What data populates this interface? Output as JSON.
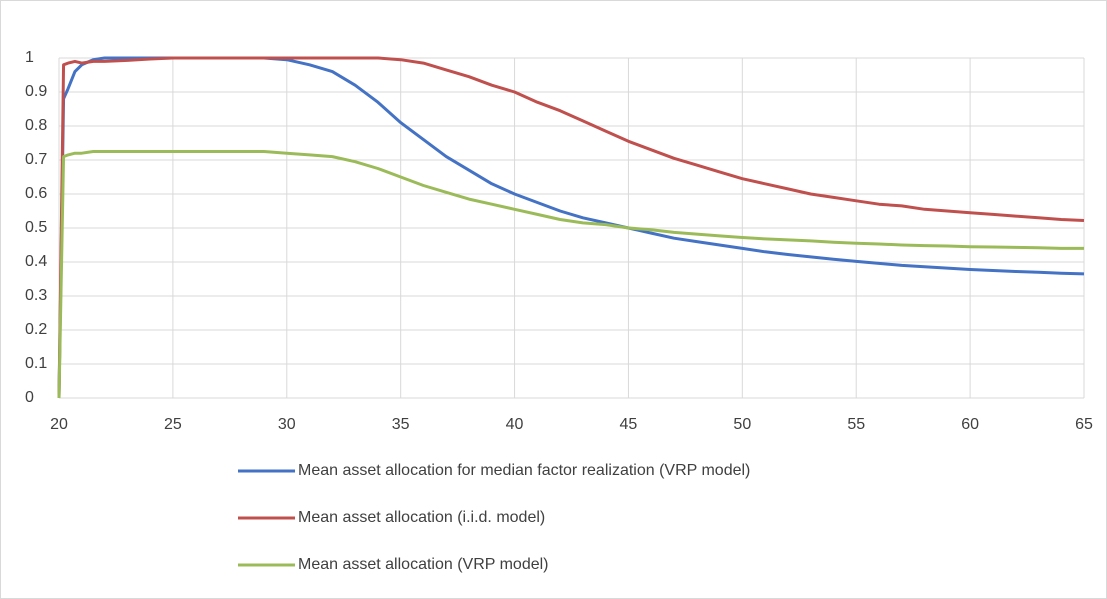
{
  "chart_data": {
    "type": "line",
    "x": [
      20,
      20.2,
      20.4,
      20.7,
      21,
      21.5,
      22,
      23,
      24,
      25,
      26,
      27,
      28,
      29,
      30,
      31,
      32,
      33,
      34,
      35,
      36,
      37,
      38,
      39,
      40,
      41,
      42,
      43,
      44,
      45,
      46,
      47,
      48,
      49,
      50,
      51,
      52,
      53,
      54,
      55,
      56,
      57,
      58,
      59,
      60,
      61,
      62,
      63,
      64,
      65
    ],
    "series": [
      {
        "name": "Mean asset allocation for median factor realization (VRP model)",
        "color": "#4472c4",
        "values": [
          0,
          0.88,
          0.91,
          0.96,
          0.98,
          0.995,
          1,
          1,
          1,
          1,
          1,
          1,
          1,
          1,
          0.995,
          0.98,
          0.96,
          0.92,
          0.87,
          0.81,
          0.76,
          0.71,
          0.67,
          0.63,
          0.6,
          0.575,
          0.55,
          0.53,
          0.515,
          0.5,
          0.485,
          0.47,
          0.46,
          0.45,
          0.44,
          0.43,
          0.422,
          0.415,
          0.408,
          0.402,
          0.396,
          0.39,
          0.386,
          0.382,
          0.378,
          0.375,
          0.372,
          0.37,
          0.367,
          0.365
        ]
      },
      {
        "name": "Mean asset allocation (i.i.d. model)",
        "color": "#c0504d",
        "values": [
          0,
          0.98,
          0.985,
          0.99,
          0.985,
          0.99,
          0.99,
          0.993,
          0.997,
          1,
          1,
          1,
          1,
          1,
          1,
          1,
          1,
          1,
          1,
          0.995,
          0.985,
          0.965,
          0.945,
          0.92,
          0.9,
          0.87,
          0.845,
          0.815,
          0.785,
          0.755,
          0.73,
          0.705,
          0.685,
          0.665,
          0.645,
          0.63,
          0.615,
          0.6,
          0.59,
          0.58,
          0.57,
          0.565,
          0.555,
          0.55,
          0.545,
          0.54,
          0.535,
          0.53,
          0.525,
          0.522
        ]
      },
      {
        "name": "Mean asset allocation (VRP model)",
        "color": "#9bbb59",
        "values": [
          0,
          0.71,
          0.715,
          0.72,
          0.72,
          0.725,
          0.725,
          0.725,
          0.725,
          0.725,
          0.725,
          0.725,
          0.725,
          0.725,
          0.72,
          0.715,
          0.71,
          0.695,
          0.675,
          0.65,
          0.625,
          0.605,
          0.585,
          0.57,
          0.555,
          0.54,
          0.525,
          0.515,
          0.51,
          0.5,
          0.495,
          0.487,
          0.482,
          0.477,
          0.472,
          0.468,
          0.465,
          0.462,
          0.458,
          0.455,
          0.453,
          0.45,
          0.448,
          0.447,
          0.445,
          0.444,
          0.443,
          0.442,
          0.44,
          0.44
        ]
      }
    ],
    "xlim": [
      20,
      65
    ],
    "xticks": [
      20,
      25,
      30,
      35,
      40,
      45,
      50,
      55,
      60,
      65
    ],
    "ylim": [
      0,
      1
    ],
    "yticks": [
      0,
      0.1,
      0.2,
      0.3,
      0.4,
      0.5,
      0.6,
      0.7,
      0.8,
      0.9,
      1
    ],
    "grid": true,
    "legend": "bottom"
  }
}
